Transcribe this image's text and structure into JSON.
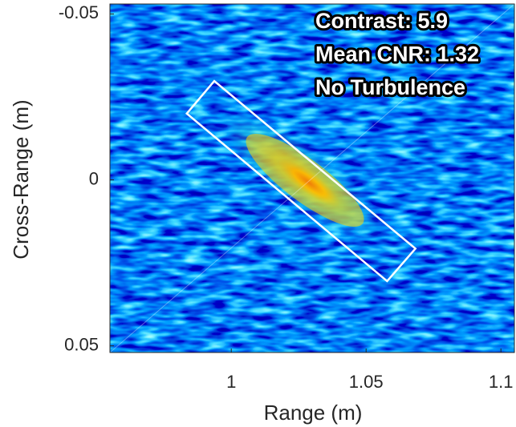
{
  "chart_data": {
    "type": "image",
    "xlabel": "Range (m)",
    "ylabel": "Cross-Range (m)",
    "xlim": [
      0.955,
      1.105
    ],
    "ylim": [
      -0.053,
      0.052
    ],
    "xticks": [
      1,
      1.05,
      1.1
    ],
    "yticks": [
      -0.05,
      0,
      0.05
    ],
    "annotations": [
      "Contrast: 5.9",
      "Mean CNR: 1.32",
      "No Turbulence"
    ],
    "roi": {
      "x": [
        0.9835,
        0.9937,
        1.0683,
        1.0578
      ],
      "y": [
        -0.02,
        -0.0298,
        0.0207,
        0.0305
      ],
      "color": "#ffffff"
    }
  }
}
